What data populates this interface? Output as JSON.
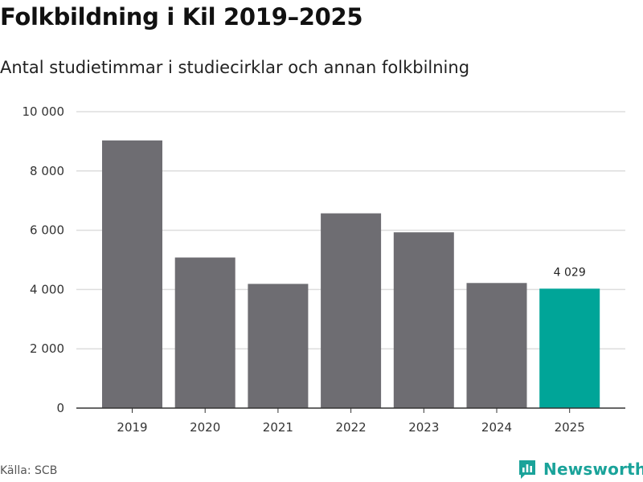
{
  "title": "Folkbildning i Kil 2019–2025",
  "subtitle": "Antal studietimmar i studiecirklar och annan folkbilning",
  "source": "Källa: SCB",
  "brand": {
    "name": "Newsworthy",
    "icon": "bar-chart-icon",
    "color": "#1aa39a"
  },
  "colors": {
    "bar": "#6e6d72",
    "highlight": "#00a598",
    "grid": "#dddddd",
    "axis": "#333333"
  },
  "chart_data": {
    "type": "bar",
    "title": "Folkbildning i Kil 2019–2025",
    "subtitle": "Antal studietimmar i studiecirklar och annan folkbilning",
    "xlabel": "",
    "ylabel": "",
    "categories": [
      "2019",
      "2020",
      "2021",
      "2022",
      "2023",
      "2024",
      "2025"
    ],
    "values": [
      9030,
      5080,
      4190,
      6570,
      5930,
      4220,
      4029
    ],
    "highlight_index": 6,
    "highlight_label": "4 029",
    "ylim": [
      0,
      10000
    ],
    "yticks": [
      0,
      2000,
      4000,
      6000,
      8000,
      10000
    ],
    "ytick_labels": [
      "0",
      "2 000",
      "4 000",
      "6 000",
      "8 000",
      "10 000"
    ],
    "grid": true,
    "legend": "none"
  }
}
